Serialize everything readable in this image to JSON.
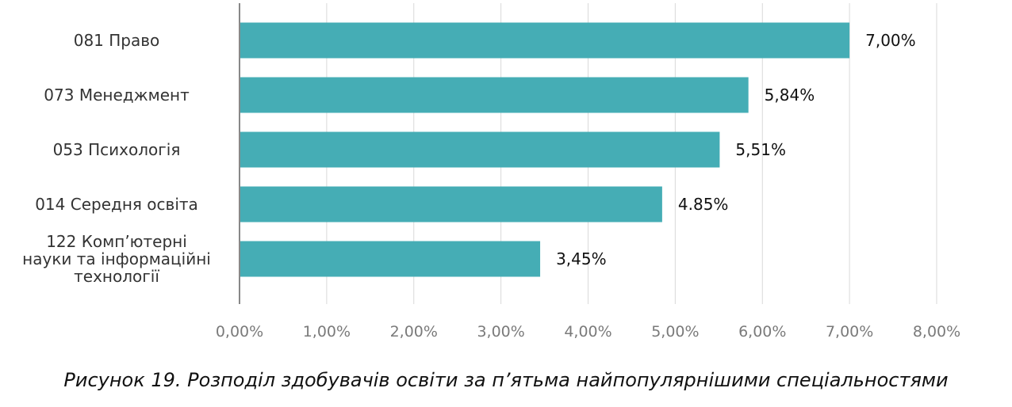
{
  "chart_data": {
    "type": "bar",
    "orientation": "horizontal",
    "categories": [
      [
        "081 Право"
      ],
      [
        "073 Менеджмент"
      ],
      [
        "053 Психологія"
      ],
      [
        "014 Середня освіта"
      ],
      [
        "122 Комп’ютерні",
        "науки та інформаційні",
        "технології"
      ]
    ],
    "values": [
      7.0,
      5.84,
      5.51,
      4.85,
      3.45
    ],
    "value_labels": [
      "7,00%",
      "5,84%",
      "5,51%",
      "4.85%",
      "3,45%"
    ],
    "xlim": [
      0,
      8
    ],
    "xticks": [
      0,
      1,
      2,
      3,
      4,
      5,
      6,
      7,
      8
    ],
    "xtick_labels": [
      "0,00%",
      "1,00%",
      "2,00%",
      "3,00%",
      "4,00%",
      "5,00%",
      "6,00%",
      "7,00%",
      "8,00%"
    ],
    "bar_color": "#45adb5",
    "grid": true,
    "caption": "Рисунок 19. Розподіл здобувачів освіти за п’ятьма найпопулярнішими спеціальностями"
  }
}
